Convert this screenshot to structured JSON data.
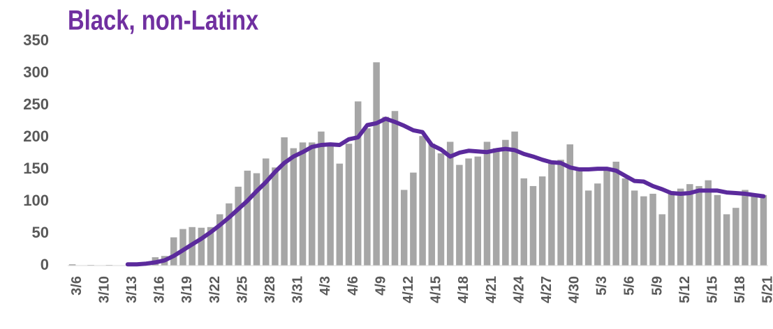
{
  "chart_data": {
    "type": "bar_line",
    "title": "Black, non-Latinx",
    "categories": [
      "3/6",
      null,
      null,
      "3/10",
      null,
      null,
      "3/13",
      null,
      null,
      "3/16",
      null,
      null,
      "3/19",
      null,
      null,
      "3/22",
      null,
      null,
      "3/25",
      null,
      null,
      "3/28",
      null,
      null,
      "3/31",
      null,
      null,
      "4/3",
      null,
      null,
      "4/6",
      null,
      null,
      "4/9",
      null,
      null,
      "4/12",
      null,
      null,
      "4/15",
      null,
      null,
      "4/18",
      null,
      null,
      "4/21",
      null,
      null,
      "4/24",
      null,
      null,
      "4/27",
      null,
      null,
      "4/30",
      null,
      null,
      "5/3",
      null,
      null,
      "5/6",
      null,
      null,
      "5/9",
      null,
      null,
      "5/12",
      null,
      null,
      "5/15",
      null,
      null,
      "5/18",
      null,
      null,
      "5/21"
    ],
    "series": [
      {
        "type": "bar",
        "color": "#a6a6a6",
        "values": [
          2,
          0,
          1,
          0,
          1,
          0,
          0,
          1,
          2,
          13,
          15,
          44,
          57,
          60,
          59,
          60,
          80,
          97,
          123,
          148,
          144,
          167,
          153,
          200,
          183,
          192,
          192,
          209,
          190,
          159,
          190,
          256,
          214,
          317,
          232,
          241,
          118,
          145,
          202,
          190,
          175,
          193,
          157,
          167,
          170,
          193,
          183,
          196,
          209,
          136,
          124,
          139,
          160,
          165,
          189,
          148,
          117,
          128,
          152,
          162,
          136,
          117,
          108,
          112,
          80,
          116,
          120,
          127,
          124,
          133,
          110,
          80,
          90,
          118,
          112,
          110
        ]
      },
      {
        "type": "line",
        "color": "#5b2a9c",
        "values": [
          null,
          null,
          null,
          null,
          null,
          null,
          2,
          2,
          3,
          5,
          8,
          15,
          24,
          33,
          42,
          52,
          63,
          75,
          88,
          101,
          116,
          130,
          146,
          160,
          170,
          177,
          185,
          188,
          189,
          188,
          197,
          200,
          219,
          222,
          229,
          224,
          218,
          211,
          208,
          188,
          181,
          170,
          176,
          179,
          178,
          177,
          180,
          182,
          180,
          174,
          170,
          165,
          161,
          160,
          153,
          150,
          150,
          151,
          151,
          148,
          140,
          132,
          131,
          124,
          119,
          113,
          112,
          113,
          117,
          117,
          117,
          114,
          113,
          112,
          110,
          108
        ]
      }
    ],
    "ylim": [
      0,
      350
    ],
    "yticks": [
      0,
      50,
      100,
      150,
      200,
      250,
      300,
      350
    ],
    "grid": false
  }
}
